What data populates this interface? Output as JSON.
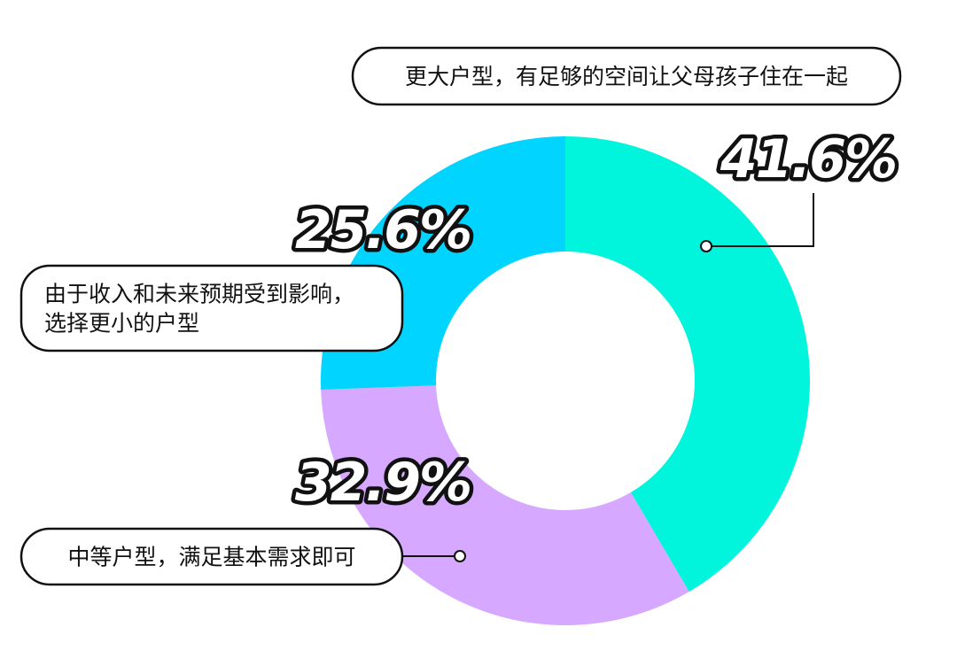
{
  "chart_data": {
    "type": "pie",
    "donut": true,
    "legend": "none",
    "categories": [
      "更大户型，有足够的空间让父母孩子住在一起",
      "中等户型，满足基本需求即可",
      "由于收入和未来预期受到影响，选择更小的户型"
    ],
    "values": [
      41.6,
      32.9,
      25.6
    ],
    "value_labels": [
      "41.6%",
      "32.9%",
      "25.6%"
    ],
    "label_lines": [
      [
        "更大户型，有足够的空间让父母孩子住在一起"
      ],
      [
        "中等户型，满足基本需求即可"
      ],
      [
        "由于收入和未来预期受到影响，",
        "选择更小的户型"
      ]
    ],
    "colors": [
      "#00f5dc",
      "#d6a8ff",
      "#00d4ff"
    ]
  }
}
